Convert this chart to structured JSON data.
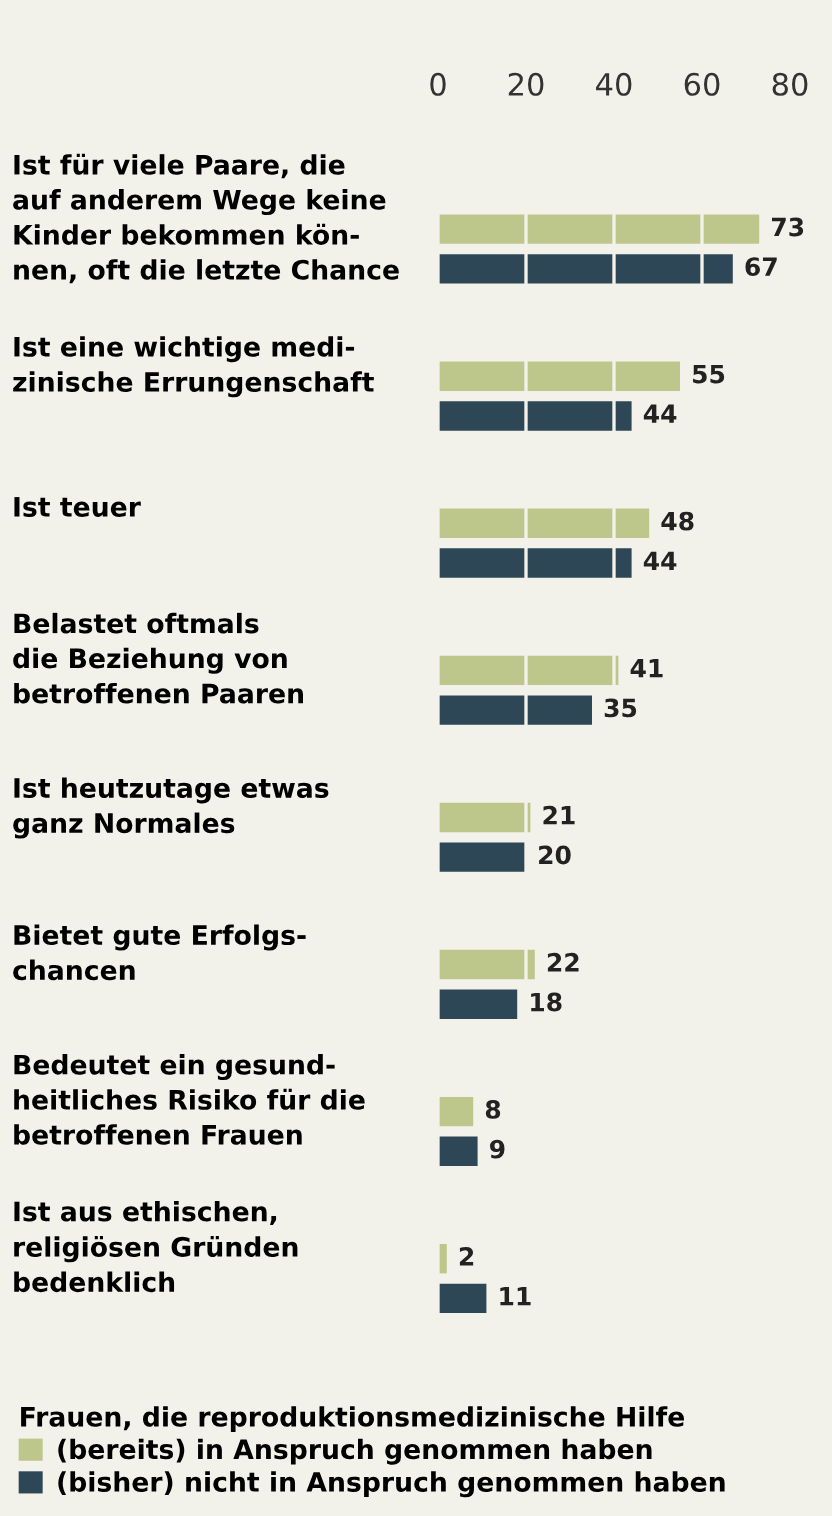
{
  "chart_data": {
    "type": "bar",
    "orientation": "horizontal",
    "categories": [
      "Ist für viele Paare, die\nauf anderem Wege keine\nKinder bekommen kön-\nnen, oft die letzte Chance",
      "Ist eine wichtige medi-\nzinische Errungenschaft",
      "Ist teuer",
      "Belastet oftmals\ndie Beziehung von\nbetroffenen Paaren",
      "Ist heutzutage etwas\nganz Normales",
      "Bietet gute Erfolgs-\nchancen",
      "Bedeutet ein gesund-\nheitliches Risiko für die\nbetroffenen Frauen",
      "Ist aus ethischen,\nreligiösen Gründen\nbedenklich"
    ],
    "series": [
      {
        "name": "(bereits) in Anspruch genommen haben",
        "color": "#bec78b",
        "values": [
          73,
          55,
          48,
          41,
          21,
          22,
          8,
          2
        ]
      },
      {
        "name": "(bisher) nicht in Anspruch genommen haben",
        "color": "#2e4756",
        "values": [
          67,
          44,
          44,
          35,
          20,
          18,
          9,
          11
        ]
      }
    ],
    "legend_title": "Frauen, die reproduktionsmedizinische Hilfe",
    "legend": "bottom",
    "xlim": [
      0,
      80
    ],
    "xticks": [
      0,
      20,
      40,
      60,
      80
    ],
    "grid": "x",
    "data_labels": true
  }
}
